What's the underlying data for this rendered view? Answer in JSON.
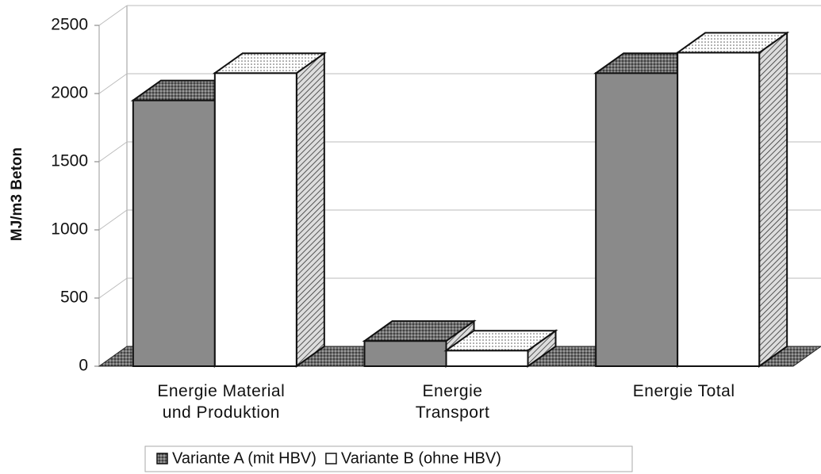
{
  "chart_data": {
    "type": "bar3d",
    "y_label": "MJ/m3 Beton",
    "categories": [
      "Energie Material\nund Produktion",
      "Energie\nTransport",
      "Energie Total"
    ],
    "series": [
      {
        "name": "Variante A (mit HBV)",
        "color": "#8a8a8a",
        "values": [
          1950,
          185,
          2150
        ]
      },
      {
        "name": "Variante B (ohne HBV)",
        "color": "#ffffff",
        "values": [
          2150,
          115,
          2300
        ]
      }
    ],
    "ylim": [
      0,
      2500
    ],
    "yticks": [
      0,
      500,
      1000,
      1500,
      2000,
      2500
    ],
    "grid": true,
    "legend": "bottom"
  }
}
